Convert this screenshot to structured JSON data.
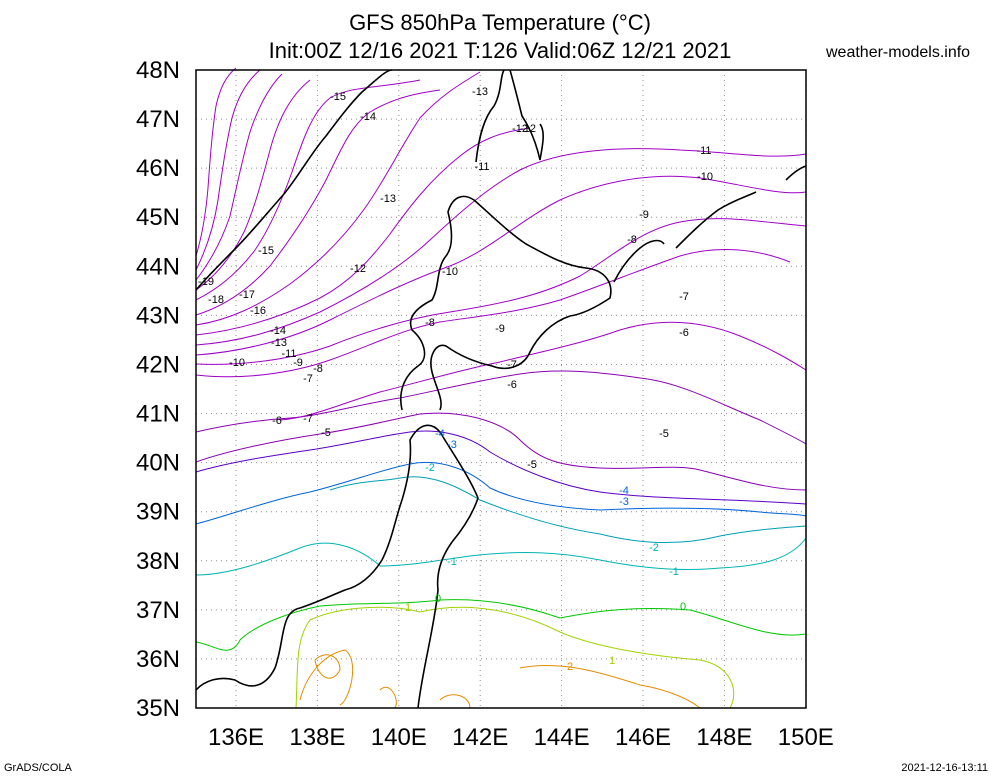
{
  "header": {
    "title_line1": "GFS 850hPa Temperature (°C)",
    "title_line2": "Init:00Z 12/16 2021 T:126 Valid:06Z 12/21 2021",
    "site": "weather-models.info"
  },
  "footer": {
    "credit": "GrADS/COLA",
    "timestamp": "2021-12-16-13:11"
  },
  "map": {
    "lat_labels": [
      "48N",
      "47N",
      "46N",
      "45N",
      "44N",
      "43N",
      "42N",
      "41N",
      "40N",
      "39N",
      "38N",
      "37N",
      "36N",
      "35N"
    ],
    "lon_labels": [
      "136E",
      "138E",
      "140E",
      "142E",
      "144E",
      "146E",
      "148E",
      "150E"
    ],
    "contour_labels": [
      "-15",
      "-14",
      "-13",
      "-12",
      "-12",
      "-11",
      "-11",
      "-10",
      "-13",
      "-9",
      "-8",
      "-15",
      "-12",
      "-10",
      "-19",
      "-18",
      "-17",
      "-16",
      "-7",
      "-14",
      "-13",
      "-8",
      "-9",
      "-11",
      "-6",
      "-10",
      "-9",
      "-8",
      "-7",
      "-7",
      "-6",
      "-6",
      "-7",
      "-5",
      "-4",
      "-3",
      "-5",
      "-2",
      "-5",
      "-4",
      "-3",
      "-2",
      "-1",
      "-1",
      "0",
      "1",
      "0",
      "2",
      "1"
    ],
    "colors": {
      "frame": "#000000",
      "grid": "#8c8c8c",
      "coast": "#000000",
      "cold": "#8a00b4",
      "cool": "#a000c8",
      "blue": "#0064dc",
      "teal": "#00b4b4",
      "green": "#00c800",
      "yellowgreen": "#a0d200",
      "orange": "#e68c00"
    }
  }
}
